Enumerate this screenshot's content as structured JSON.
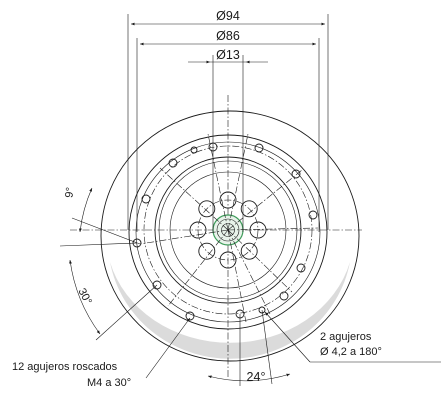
{
  "diagram": {
    "dims": {
      "d94": "Ø94",
      "d86": "Ø86",
      "d13": "Ø13"
    },
    "angles": {
      "a9": "9°",
      "a30": "30°",
      "a24": "24°"
    },
    "callouts": {
      "two_holes_line1": "2 agujeros",
      "two_holes_line2": "Ø 4,2 a 180°",
      "threaded_line1": "12 agujeros roscados",
      "threaded_line2": "M4 a 30°"
    },
    "colors": {
      "lines": "#1a1a1a",
      "body_gray": "#c8c8c8",
      "face_light": "#f4f4f4",
      "center_accent": "#3e9c5a"
    }
  }
}
